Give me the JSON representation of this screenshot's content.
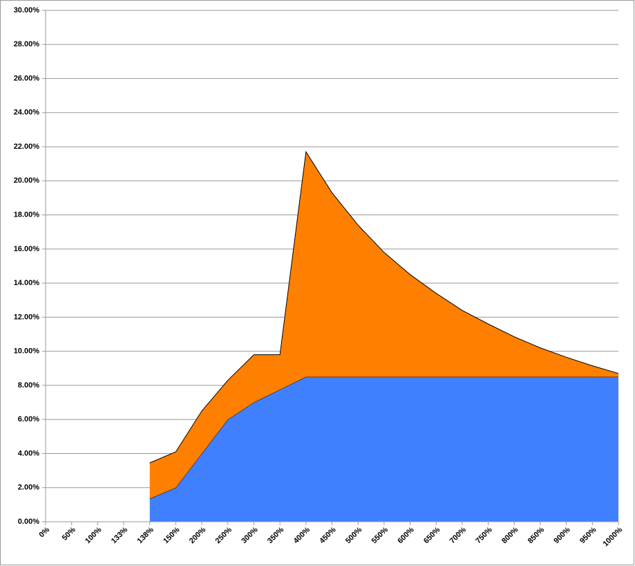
{
  "chart_data": {
    "type": "stacked_area",
    "categories": [
      "0%",
      "50%",
      "100%",
      "133%",
      "138%",
      "150%",
      "200%",
      "250%",
      "300%",
      "350%",
      "400%",
      "450%",
      "500%",
      "550%",
      "600%",
      "650%",
      "700%",
      "750%",
      "800%",
      "850%",
      "900%",
      "950%",
      "1000%"
    ],
    "series": [
      {
        "color": "#4080ff",
        "values": [
          null,
          null,
          null,
          null,
          1.35,
          2.0,
          4.0,
          6.0,
          7.0,
          7.75,
          8.5,
          8.5,
          8.5,
          8.5,
          8.5,
          8.5,
          8.5,
          8.5,
          8.5,
          8.5,
          8.5,
          8.5,
          8.5
        ]
      },
      {
        "color": "#ff8000",
        "values": [
          null,
          null,
          null,
          null,
          2.1,
          2.1,
          2.5,
          2.3,
          2.8,
          2.05,
          13.2,
          10.8,
          8.9,
          7.3,
          6.0,
          4.9,
          3.9,
          3.1,
          2.35,
          1.7,
          1.15,
          0.65,
          0.2
        ]
      }
    ],
    "ylim": [
      0,
      30
    ],
    "yticks": [
      {
        "value": 0,
        "label": "0.00%"
      },
      {
        "value": 2,
        "label": "2.00%"
      },
      {
        "value": 4,
        "label": "4.00%"
      },
      {
        "value": 6,
        "label": "6.00%"
      },
      {
        "value": 8,
        "label": "8.00%"
      },
      {
        "value": 10,
        "label": "10.00%"
      },
      {
        "value": 12,
        "label": "12.00%"
      },
      {
        "value": 14,
        "label": "14.00%"
      },
      {
        "value": 16,
        "label": "16.00%"
      },
      {
        "value": 18,
        "label": "18.00%"
      },
      {
        "value": 20,
        "label": "20.00%"
      },
      {
        "value": 22,
        "label": "22.00%"
      },
      {
        "value": 24,
        "label": "24.00%"
      },
      {
        "value": 26,
        "label": "26.00%"
      },
      {
        "value": 28,
        "label": "28.00%"
      },
      {
        "value": 30,
        "label": "30.00%"
      }
    ],
    "grid": true
  }
}
